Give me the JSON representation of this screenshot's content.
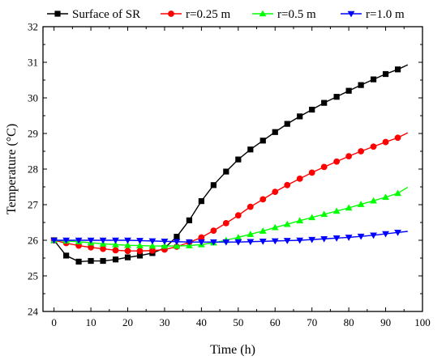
{
  "chart_data": {
    "type": "line",
    "title": "",
    "xlabel": "Time (h)",
    "ylabel": "Temperature (°C)",
    "xlim": [
      -3,
      100
    ],
    "ylim": [
      24,
      32
    ],
    "xticks": [
      0,
      10,
      20,
      30,
      40,
      50,
      60,
      70,
      80,
      90,
      100
    ],
    "yticks": [
      24,
      25,
      26,
      27,
      28,
      29,
      30,
      31,
      32
    ],
    "grid": false,
    "legend_position": "top",
    "series": [
      {
        "name": "Surface of SR",
        "color": "#000000",
        "marker": "square",
        "x": [
          0,
          3.3,
          6.7,
          10,
          13.3,
          16.7,
          20,
          23.3,
          26.7,
          30,
          33.3,
          36.7,
          40,
          43.3,
          46.7,
          50,
          53.3,
          56.7,
          60,
          63.3,
          66.7,
          70,
          73.3,
          76.7,
          80,
          83.3,
          86.7,
          90,
          93.3
        ],
        "y": [
          26.0,
          25.57,
          25.4,
          25.42,
          25.42,
          25.46,
          25.52,
          25.57,
          25.64,
          25.78,
          26.1,
          26.56,
          27.1,
          27.55,
          27.93,
          28.27,
          28.55,
          28.8,
          29.04,
          29.27,
          29.48,
          29.67,
          29.86,
          30.03,
          30.2,
          30.36,
          30.52,
          30.67,
          30.8
        ],
        "line_end": [
          96,
          30.93
        ]
      },
      {
        "name": "r=0.25 m",
        "color": "#ff0000",
        "marker": "circle",
        "x": [
          0,
          3.3,
          6.7,
          10,
          13.3,
          16.7,
          20,
          23.3,
          26.7,
          30,
          33.3,
          36.7,
          40,
          43.3,
          46.7,
          50,
          53.3,
          56.7,
          60,
          63.3,
          66.7,
          70,
          73.3,
          76.7,
          80,
          83.3,
          86.7,
          90,
          93.3
        ],
        "y": [
          26.0,
          25.92,
          25.85,
          25.8,
          25.76,
          25.72,
          25.7,
          25.7,
          25.71,
          25.74,
          25.82,
          25.94,
          26.08,
          26.27,
          26.48,
          26.7,
          26.94,
          27.15,
          27.36,
          27.55,
          27.73,
          27.9,
          28.06,
          28.21,
          28.36,
          28.5,
          28.63,
          28.76,
          28.88
        ],
        "line_end": [
          96,
          29.02
        ]
      },
      {
        "name": "r=0.5 m",
        "color": "#00ff00",
        "marker": "triangle-up",
        "x": [
          0,
          3.3,
          6.7,
          10,
          13.3,
          16.7,
          20,
          23.3,
          26.7,
          30,
          33.3,
          36.7,
          40,
          43.3,
          46.7,
          50,
          53.3,
          56.7,
          60,
          63.3,
          66.7,
          70,
          73.3,
          76.7,
          80,
          83.3,
          86.7,
          90,
          93.3
        ],
        "y": [
          26.0,
          25.98,
          25.96,
          25.93,
          25.9,
          25.88,
          25.86,
          25.85,
          25.84,
          25.84,
          25.84,
          25.85,
          25.88,
          25.93,
          26.0,
          26.08,
          26.17,
          26.26,
          26.36,
          26.45,
          26.55,
          26.64,
          26.73,
          26.82,
          26.91,
          27.01,
          27.11,
          27.21,
          27.32
        ],
        "line_end": [
          96,
          27.49
        ]
      },
      {
        "name": "r=1.0 m",
        "color": "#0000ff",
        "marker": "triangle-down",
        "x": [
          0,
          3.3,
          6.7,
          10,
          13.3,
          16.7,
          20,
          23.3,
          26.7,
          30,
          33.3,
          36.7,
          40,
          43.3,
          46.7,
          50,
          53.3,
          56.7,
          60,
          63.3,
          66.7,
          70,
          73.3,
          76.7,
          80,
          83.3,
          86.7,
          90,
          93.3
        ],
        "y": [
          26.0,
          26.0,
          26.0,
          26.0,
          26.0,
          26.0,
          26.0,
          25.99,
          25.98,
          25.97,
          25.96,
          25.95,
          25.95,
          25.95,
          25.95,
          25.95,
          25.96,
          25.97,
          25.98,
          25.99,
          26.0,
          26.02,
          26.04,
          26.06,
          26.08,
          26.11,
          26.14,
          26.18,
          26.22
        ],
        "line_end": [
          96,
          26.25
        ]
      }
    ]
  }
}
